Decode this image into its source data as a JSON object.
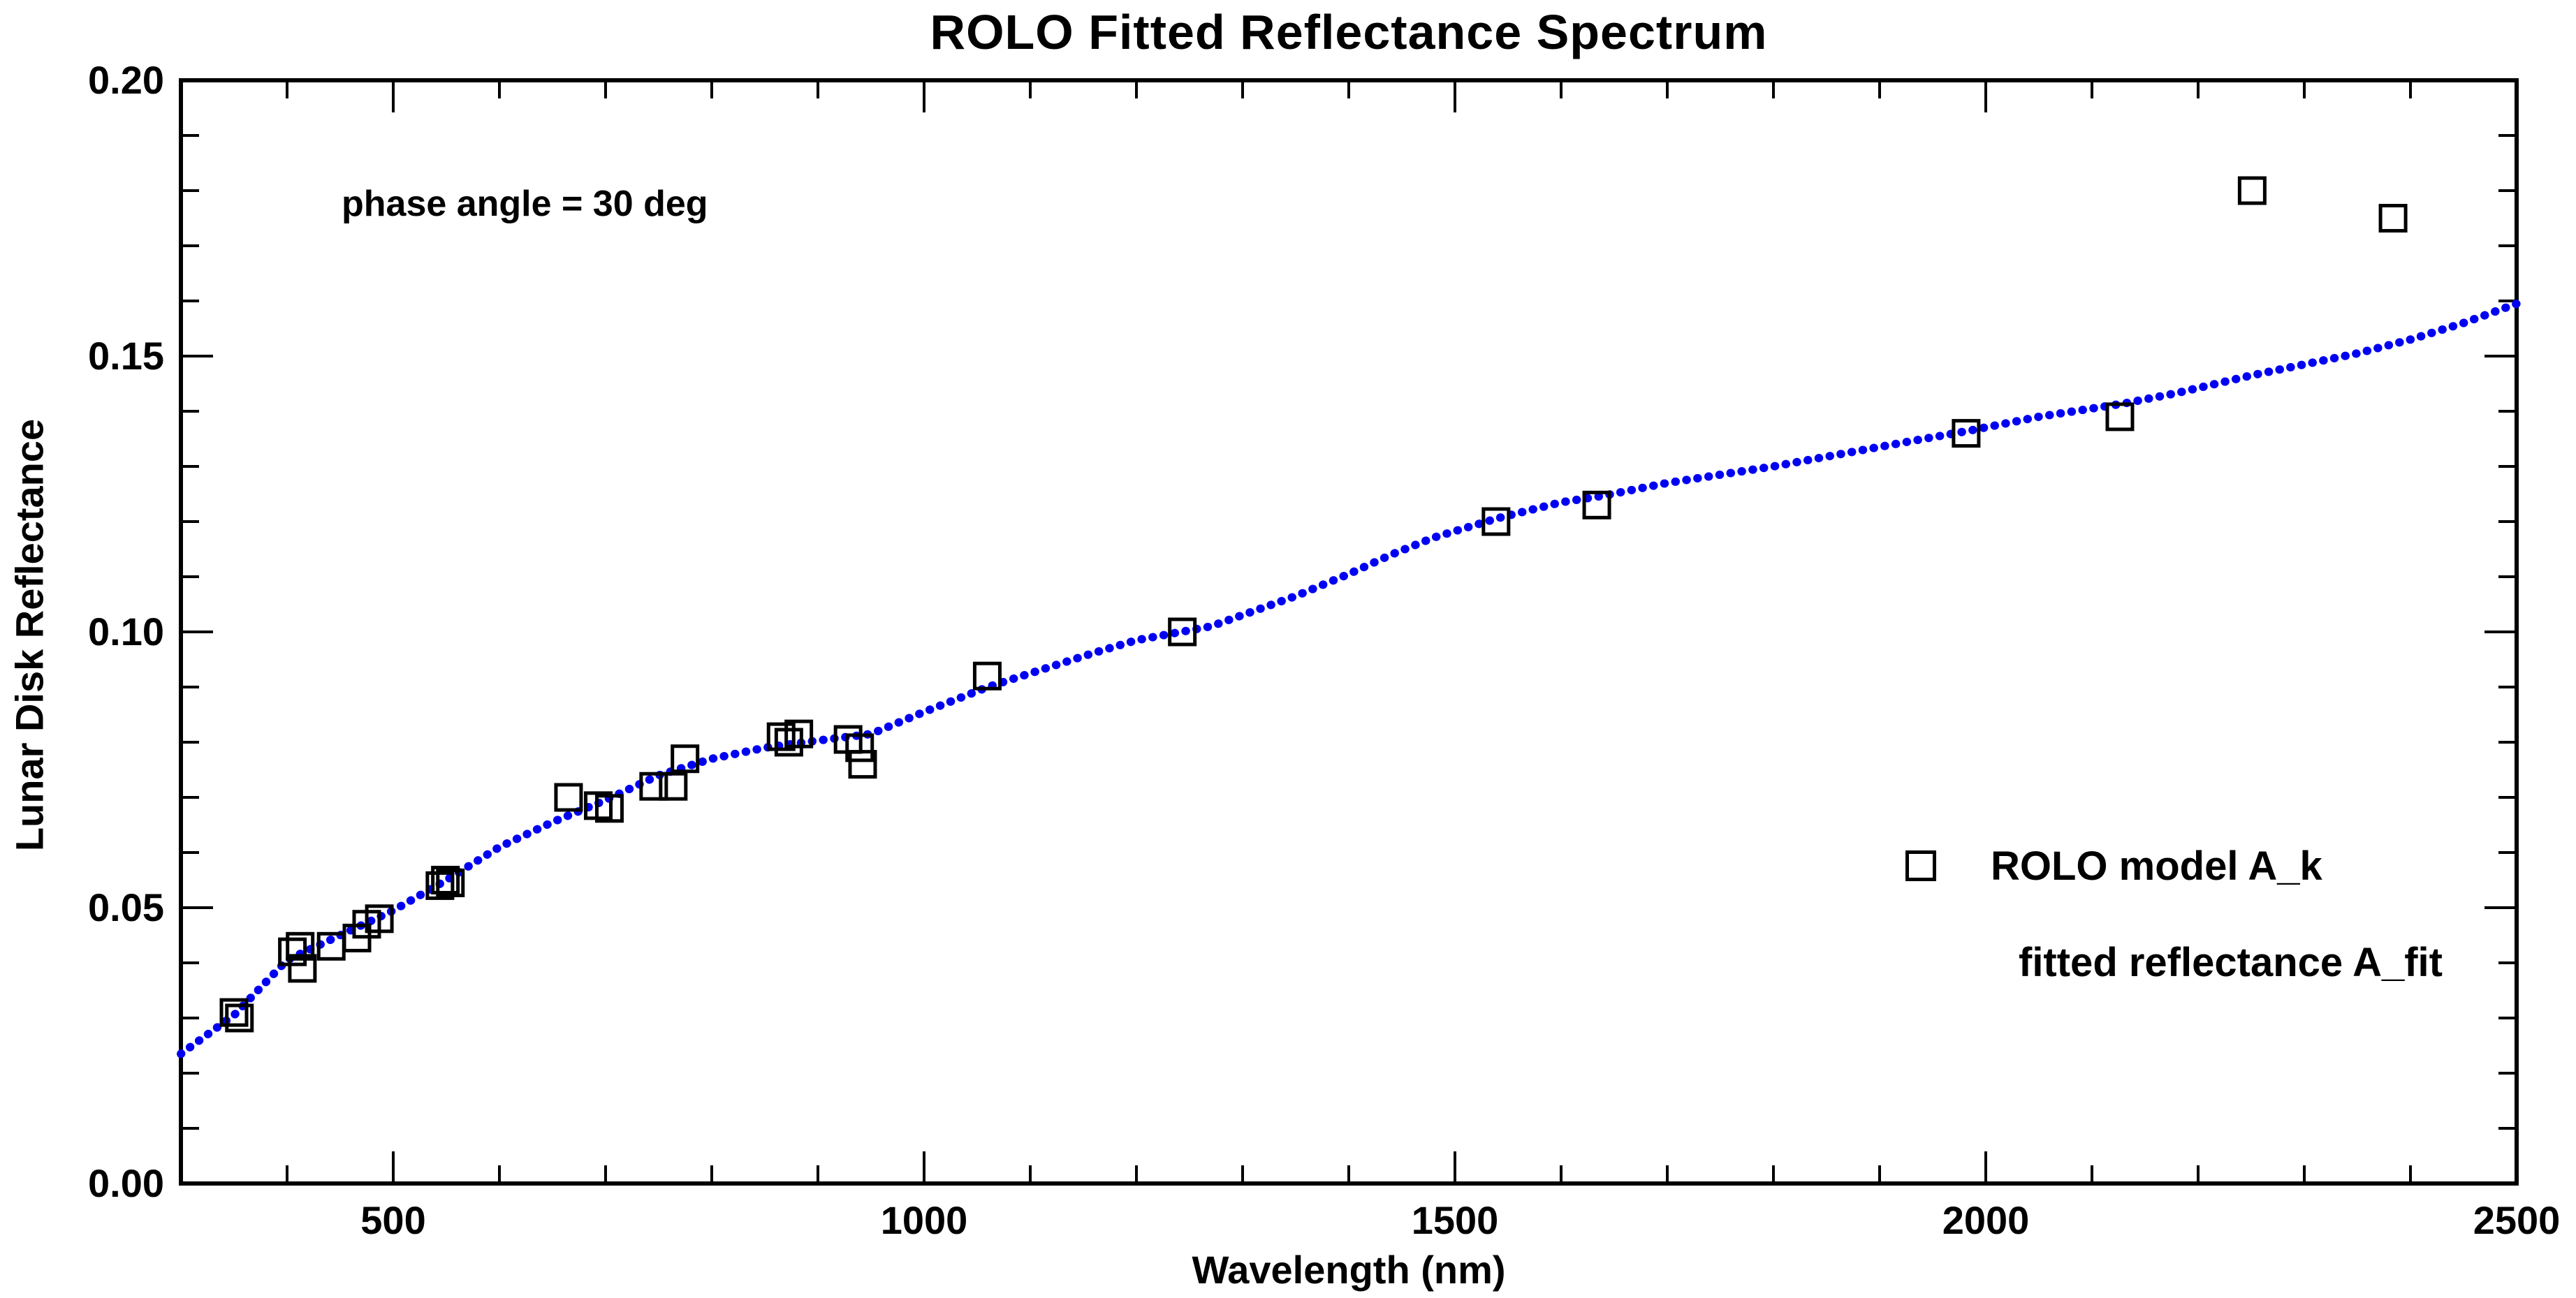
{
  "chart_data": {
    "type": "scatter",
    "title": "ROLO Fitted Reflectance Spectrum",
    "annotation": "phase angle = 30 deg",
    "xlabel": "Wavelength (nm)",
    "ylabel": "Lunar Disk Reflectance",
    "xlim": [
      300,
      2500
    ],
    "ylim": [
      0.0,
      0.2
    ],
    "x_major_ticks": [
      500,
      1000,
      1500,
      2000,
      2500
    ],
    "x_tick_labels": [
      "500",
      "1000",
      "1500",
      "2000",
      "2500"
    ],
    "x_minor_step": 100,
    "y_major_ticks": [
      0.0,
      0.05,
      0.1,
      0.15,
      0.2
    ],
    "y_tick_labels": [
      "0.00",
      "0.05",
      "0.10",
      "0.15",
      "0.20"
    ],
    "y_minor_step": 0.01,
    "grid": false,
    "legend_position": "lower-right",
    "series": [
      {
        "name": "ROLO model A_k",
        "type": "scatter",
        "marker": "open-square",
        "color": "#000000",
        "x": [
          350.0,
          355.1,
          405.0,
          412.3,
          414.4,
          441.6,
          465.8,
          475.0,
          486.9,
          544.0,
          549.1,
          553.8,
          665.1,
          693.1,
          703.6,
          745.3,
          763.7,
          774.8,
          865.3,
          872.6,
          882.0,
          928.4,
          939.3,
          942.1,
          1059.5,
          1243.2,
          1538.7,
          1633.6,
          1981.5,
          2126.3,
          2250.9,
          2383.6
        ],
        "y": [
          0.031,
          0.03,
          0.042,
          0.043,
          0.039,
          0.043,
          0.0445,
          0.047,
          0.048,
          0.054,
          0.055,
          0.0545,
          0.07,
          0.0685,
          0.068,
          0.072,
          0.072,
          0.077,
          0.081,
          0.08,
          0.0815,
          0.0805,
          0.079,
          0.076,
          0.092,
          0.1,
          0.12,
          0.123,
          0.136,
          0.139,
          0.18,
          0.175
        ]
      },
      {
        "name": "fitted reflectance A_fit",
        "type": "line",
        "style": "dotted",
        "color": "#0101f2",
        "x": [
          300,
          350,
          400,
          450,
          500,
          550,
          600,
          650,
          700,
          750,
          800,
          850,
          900,
          950,
          1000,
          1060,
          1100,
          1160,
          1200,
          1270,
          1350,
          1400,
          1440,
          1480,
          1540,
          1600,
          1640,
          1700,
          1800,
          1930,
          1985,
          2050,
          2130,
          2180,
          2250,
          2300,
          2350,
          2400,
          2450,
          2500
        ],
        "y": [
          0.0235,
          0.0305,
          0.0405,
          0.045,
          0.0495,
          0.055,
          0.061,
          0.0655,
          0.0695,
          0.074,
          0.077,
          0.079,
          0.0803,
          0.0815,
          0.0855,
          0.09,
          0.0925,
          0.0962,
          0.0985,
          0.101,
          0.1065,
          0.1105,
          0.114,
          0.1171,
          0.1206,
          0.1235,
          0.1247,
          0.127,
          0.13,
          0.1346,
          0.1365,
          0.139,
          0.1414,
          0.1433,
          0.1465,
          0.1485,
          0.1505,
          0.153,
          0.156,
          0.1595
        ]
      }
    ]
  },
  "colors": {
    "background": "#ffffff",
    "axis": "#000000",
    "fit_blue": "#0101f2"
  }
}
